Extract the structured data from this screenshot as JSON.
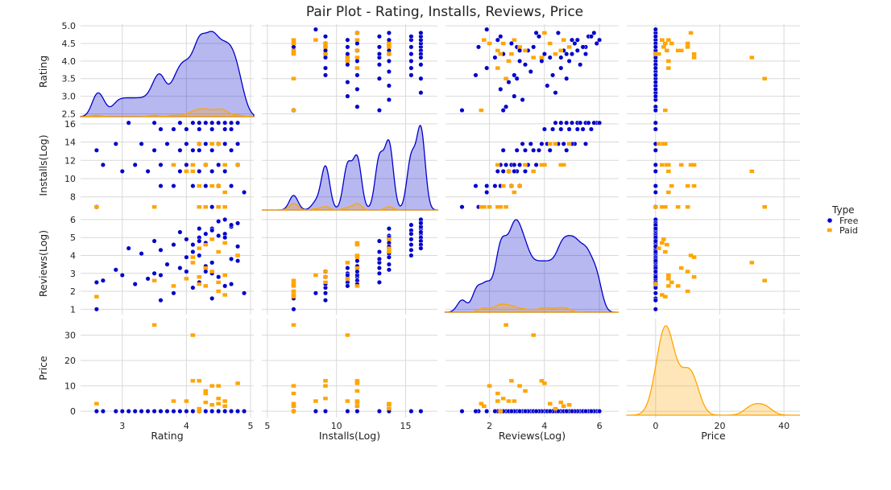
{
  "chart_data": {
    "type": "scatter",
    "title": "Pair Plot - Rating, Installs, Reviews, Price",
    "variables": [
      {
        "label": "Rating",
        "range": [
          2.35,
          5.05
        ],
        "ticks": [
          3,
          4,
          5
        ],
        "yticks": [
          2.5,
          3.0,
          3.5,
          4.0,
          4.5,
          5.0
        ],
        "ytick_labels": [
          "2.5",
          "3.0",
          "3.5",
          "4.0",
          "4.5",
          "5.0"
        ]
      },
      {
        "label": "Installs(Log)",
        "range": [
          6.3,
          16.6
        ],
        "ticks": [
          5,
          10,
          15
        ],
        "xrange": [
          4.6,
          17.3
        ],
        "yticks": [
          8,
          10,
          12,
          14,
          16
        ],
        "ytick_labels": [
          "8",
          "10",
          "12",
          "14",
          "16"
        ]
      },
      {
        "label": "Reviews(Log)",
        "range": [
          0.7,
          6.4
        ],
        "ticks": [
          2,
          4,
          6
        ],
        "xrange": [
          0.4,
          6.7
        ],
        "yticks": [
          1,
          2,
          3,
          4,
          5,
          6
        ],
        "ytick_labels": [
          "1",
          "2",
          "3",
          "4",
          "5",
          "6"
        ]
      },
      {
        "label": "Price",
        "range": [
          -2.5,
          36.5
        ],
        "ticks": [
          0,
          20,
          40
        ],
        "xrange": [
          -9,
          45
        ],
        "yticks": [
          0,
          10,
          20,
          30
        ],
        "ytick_labels": [
          "0",
          "10",
          "20",
          "30"
        ]
      }
    ],
    "legend": {
      "title": "Type",
      "placement": "right",
      "entries": [
        {
          "name": "Free",
          "color": "#0000cc",
          "marker": "circle"
        },
        {
          "name": "Paid",
          "color": "#ffa500",
          "marker": "square"
        }
      ]
    },
    "series": [
      {
        "name": "Free",
        "color": "#0000cc",
        "points": [
          [
            4.4,
            16.1,
            5.5,
            0
          ],
          [
            4.3,
            16.1,
            5.2,
            0
          ],
          [
            4.5,
            16.1,
            5.9,
            0
          ],
          [
            4.6,
            16.1,
            6.0,
            0
          ],
          [
            4.2,
            16.1,
            5.0,
            0
          ],
          [
            3.5,
            16.1,
            4.8,
            0
          ],
          [
            4.7,
            16.1,
            5.6,
            0
          ],
          [
            3.9,
            16.1,
            5.3,
            0
          ],
          [
            4.1,
            16.1,
            4.6,
            0
          ],
          [
            4.8,
            16.1,
            5.8,
            0
          ],
          [
            3.1,
            16.1,
            4.4,
            0
          ],
          [
            4.0,
            15.4,
            4.9,
            0
          ],
          [
            4.4,
            15.4,
            5.4,
            0
          ],
          [
            3.8,
            15.4,
            4.6,
            0
          ],
          [
            4.6,
            15.4,
            5.2,
            0
          ],
          [
            4.2,
            15.4,
            4.0,
            0
          ],
          [
            4.7,
            15.4,
            5.7,
            0
          ],
          [
            3.6,
            15.4,
            4.3,
            0
          ],
          [
            3.3,
            13.8,
            4.1,
            0
          ],
          [
            4.3,
            13.8,
            4.7,
            0
          ],
          [
            4.5,
            13.8,
            5.1,
            0
          ],
          [
            4.0,
            13.8,
            3.9,
            0
          ],
          [
            4.6,
            13.8,
            5.0,
            0
          ],
          [
            3.7,
            13.8,
            3.5,
            0
          ],
          [
            4.8,
            13.8,
            4.5,
            0
          ],
          [
            2.9,
            13.8,
            3.2,
            0
          ],
          [
            4.1,
            13.1,
            4.2,
            0
          ],
          [
            4.4,
            13.1,
            3.6,
            0
          ],
          [
            3.5,
            13.1,
            3.0,
            0
          ],
          [
            4.2,
            13.1,
            4.8,
            0
          ],
          [
            2.6,
            13.1,
            2.5,
            0
          ],
          [
            4.7,
            13.1,
            3.8,
            0
          ],
          [
            3.9,
            13.1,
            3.3,
            0
          ],
          [
            4.3,
            11.5,
            3.4,
            0
          ],
          [
            4.5,
            11.5,
            2.8,
            0
          ],
          [
            3.6,
            11.5,
            2.9,
            0
          ],
          [
            4.0,
            11.5,
            3.1,
            0
          ],
          [
            2.7,
            11.5,
            2.6,
            0
          ],
          [
            4.8,
            11.5,
            3.7,
            0
          ],
          [
            3.2,
            11.5,
            2.4,
            0
          ],
          [
            4.4,
            10.8,
            3.0,
            0
          ],
          [
            4.2,
            10.8,
            2.5,
            0
          ],
          [
            3.4,
            10.8,
            2.7,
            0
          ],
          [
            4.6,
            10.8,
            2.3,
            0
          ],
          [
            3.9,
            10.8,
            3.3,
            0
          ],
          [
            3.0,
            10.8,
            2.9,
            0
          ],
          [
            4.1,
            9.2,
            2.2,
            0
          ],
          [
            4.5,
            9.2,
            2.8,
            0
          ],
          [
            3.8,
            9.2,
            1.9,
            0
          ],
          [
            4.7,
            9.2,
            2.4,
            0
          ],
          [
            4.3,
            9.2,
            3.1,
            0
          ],
          [
            4.9,
            8.5,
            1.9,
            0
          ],
          [
            2.6,
            6.9,
            1.0,
            0
          ],
          [
            4.4,
            6.9,
            1.6,
            0
          ],
          [
            3.6,
            9.2,
            1.5,
            0
          ],
          [
            4.2,
            13.8,
            5.5,
            0
          ]
        ]
      },
      {
        "name": "Paid",
        "color": "#ffa500",
        "points": [
          [
            4.3,
            6.9,
            2.3,
            7.0
          ],
          [
            4.6,
            6.9,
            1.8,
            2.0
          ],
          [
            2.6,
            6.9,
            1.7,
            3.0
          ],
          [
            3.5,
            6.9,
            2.6,
            34.0
          ],
          [
            4.5,
            6.9,
            2.0,
            10.0
          ],
          [
            4.2,
            6.9,
            2.4,
            0.0
          ],
          [
            4.1,
            10.8,
            3.6,
            30.0
          ],
          [
            4.5,
            9.2,
            2.5,
            5.0
          ],
          [
            4.2,
            9.2,
            2.8,
            12.0
          ],
          [
            4.6,
            8.5,
            2.9,
            4.0
          ],
          [
            4.3,
            11.5,
            3.3,
            8.0
          ],
          [
            4.4,
            9.2,
            3.1,
            10.0
          ],
          [
            3.8,
            11.5,
            2.3,
            4.0
          ],
          [
            4.1,
            11.5,
            3.9,
            12.0
          ],
          [
            4.5,
            13.8,
            4.2,
            3.0
          ],
          [
            4.6,
            11.5,
            4.7,
            2.0
          ],
          [
            4.2,
            13.8,
            4.4,
            1.0
          ],
          [
            4.8,
            11.5,
            4.0,
            11.0
          ],
          [
            4.0,
            10.8,
            2.7,
            4.0
          ],
          [
            4.4,
            13.8,
            4.9,
            2.5
          ],
          [
            4.3,
            11.5,
            4.6,
            3.5
          ]
        ]
      }
    ],
    "diagonal": "kde",
    "grid": true
  }
}
